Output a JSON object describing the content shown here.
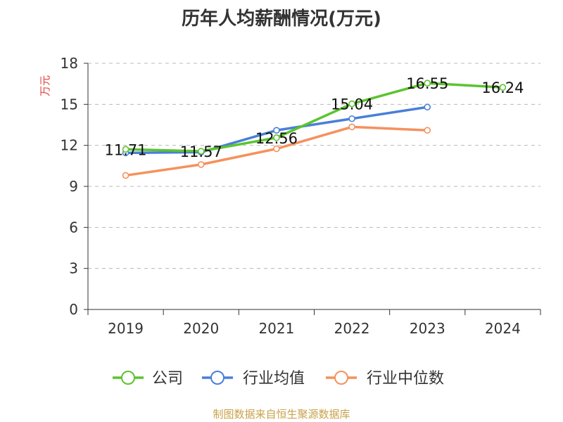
{
  "title": "历年人均薪酬情况(万元)",
  "source": "制图数据来自恒生聚源数据库",
  "colors": {
    "公司": "#5bc42f",
    "行业均值": "#4a7fd8",
    "行业中位数": "#f5915c",
    "axis": "#333333",
    "grid": "#b8b8b8",
    "ylabel": "#e0403a"
  },
  "chart_data": {
    "type": "line",
    "title": "历年人均薪酬情况(万元)",
    "xlabel": "",
    "ylabel": "万元",
    "x": [
      "2019",
      "2020",
      "2021",
      "2022",
      "2023",
      "2024"
    ],
    "ylim": [
      0,
      18
    ],
    "yticks": [
      0,
      3,
      6,
      9,
      12,
      15,
      18
    ],
    "grid": true,
    "legend": "bottom",
    "series": [
      {
        "name": "公司",
        "values": [
          11.71,
          11.57,
          12.56,
          15.04,
          16.55,
          16.24
        ],
        "labels": [
          "11.71",
          "11.57",
          "12.56",
          "15.04",
          "16.55",
          "16.24"
        ]
      },
      {
        "name": "行业均值",
        "values": [
          11.45,
          11.5,
          13.1,
          13.95,
          14.8,
          null
        ]
      },
      {
        "name": "行业中位数",
        "values": [
          9.8,
          10.6,
          11.75,
          13.35,
          13.1,
          null
        ]
      }
    ]
  }
}
